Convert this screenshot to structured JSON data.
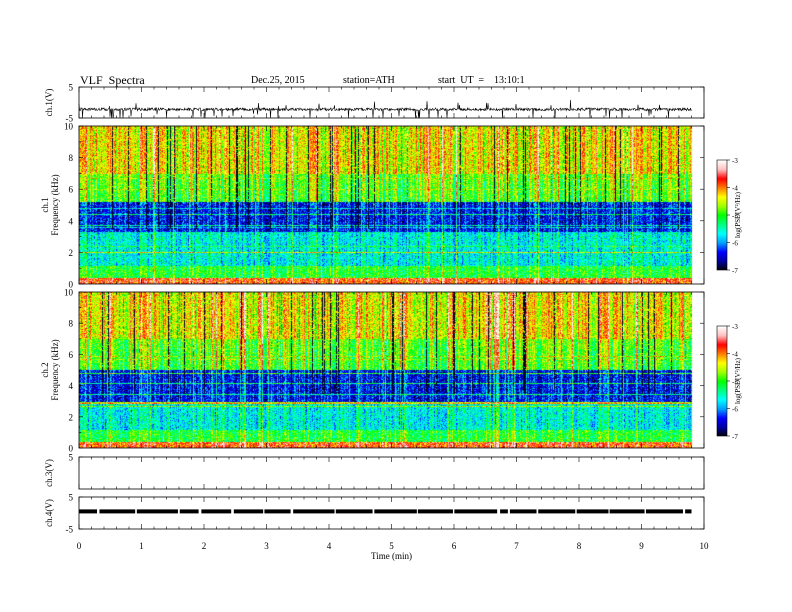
{
  "header": {
    "title": "VLF  Spectra",
    "date": "Dec.25, 2015",
    "station": "station=ATH",
    "start": "start  UT  =    13:10:1"
  },
  "chart_data": [
    {
      "type": "line",
      "name": "ch1-waveform",
      "ylabel": "ch.1(V)",
      "ylim": [
        -5,
        5
      ],
      "yticks": [
        "5",
        "-5"
      ],
      "xlim": [
        0,
        10
      ],
      "baseline": -2.2,
      "data_end": 9.8
    },
    {
      "type": "heatmap",
      "name": "ch1-spectrogram",
      "ylabel": "ch.1",
      "ylabel2": "Frequency  (kHz)",
      "ylim": [
        0,
        10
      ],
      "yticks": [
        "0",
        "2",
        "4",
        "6",
        "8",
        "10"
      ],
      "xlim": [
        0,
        10
      ],
      "data_end": 9.8,
      "colorbar": {
        "label": "log(PSD(V²/Hz)",
        "range": [
          -7,
          -3
        ],
        "ticks": [
          "-7",
          "-6",
          "-5",
          "-4",
          "-3"
        ]
      }
    },
    {
      "type": "heatmap",
      "name": "ch2-spectrogram",
      "ylabel": "ch.2",
      "ylabel2": "Frequency  (kHz)",
      "ylim": [
        0,
        10
      ],
      "yticks": [
        "0",
        "2",
        "4",
        "6",
        "8",
        "10"
      ],
      "xlim": [
        0,
        10
      ],
      "data_end": 9.8,
      "colorbar": {
        "label": "log(PSD(V²/Hz)",
        "range": [
          -7,
          -3
        ],
        "ticks": [
          "-7",
          "-6",
          "-5",
          "-4",
          "-3"
        ]
      }
    },
    {
      "type": "line",
      "name": "ch3-waveform",
      "ylabel": "ch.3(V)",
      "ylim": [
        -5,
        5
      ],
      "yticks": [
        "5"
      ],
      "xlim": [
        0,
        10
      ]
    },
    {
      "type": "line",
      "name": "ch4-waveform",
      "ylabel": "ch.4(V)",
      "ylim": [
        -5,
        5
      ],
      "yticks": [
        "5",
        "-5"
      ],
      "xlim": [
        0,
        10
      ],
      "baseline": 0.5,
      "data_end": 9.8
    }
  ],
  "x_axis": {
    "label": "Time  (min)",
    "ticks": [
      "0",
      "1",
      "2",
      "3",
      "4",
      "5",
      "6",
      "7",
      "8",
      "9",
      "10"
    ]
  },
  "colors": {
    "colormap": [
      "#000000",
      "#0000a0",
      "#0000ff",
      "#00a0ff",
      "#00ffff",
      "#00ff80",
      "#00ff00",
      "#a0ff00",
      "#ffff00",
      "#ff8000",
      "#ff0000",
      "#ffc0c0",
      "#ffffff"
    ]
  }
}
